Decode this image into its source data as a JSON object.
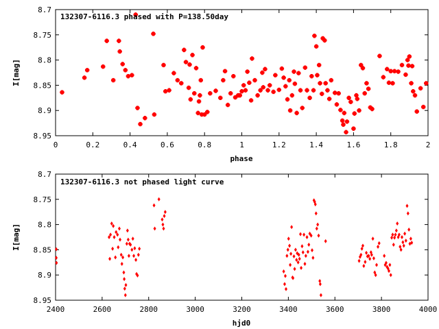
{
  "chart_data": [
    {
      "type": "scatter",
      "title": "132307-6116.3 phased with P=138.50day",
      "xlabel": "phase",
      "ylabel": "I[mag]",
      "xlim": [
        0,
        2
      ],
      "ylim": [
        8.7,
        8.95
      ],
      "y_inverted": true,
      "x_ticks": [
        "0",
        "0.2",
        "0.4",
        "0.6",
        "0.8",
        "1",
        "1.2",
        "1.4",
        "1.6",
        "1.8",
        "2"
      ],
      "y_ticks": [
        "8.7",
        "8.75",
        "8.8",
        "8.85",
        "8.9",
        "8.95"
      ],
      "grid": false,
      "marker_color": "#ff0000",
      "points": [
        [
          0.035,
          8.864
        ],
        [
          0.155,
          8.835
        ],
        [
          0.17,
          8.82
        ],
        [
          0.255,
          8.813
        ],
        [
          0.275,
          8.762
        ],
        [
          0.31,
          8.84
        ],
        [
          0.34,
          8.762
        ],
        [
          0.345,
          8.783
        ],
        [
          0.36,
          8.808
        ],
        [
          0.375,
          8.82
        ],
        [
          0.39,
          8.832
        ],
        [
          0.41,
          8.83
        ],
        [
          0.43,
          8.71
        ],
        [
          0.44,
          8.895
        ],
        [
          0.455,
          8.927
        ],
        [
          0.48,
          8.915
        ],
        [
          0.525,
          8.748
        ],
        [
          0.53,
          8.908
        ],
        [
          0.58,
          8.81
        ],
        [
          0.59,
          8.862
        ],
        [
          0.61,
          8.86
        ],
        [
          0.635,
          8.826
        ],
        [
          0.655,
          8.84
        ],
        [
          0.675,
          8.846
        ],
        [
          0.69,
          8.78
        ],
        [
          0.7,
          8.804
        ],
        [
          0.715,
          8.855
        ],
        [
          0.72,
          8.809
        ],
        [
          0.725,
          8.878
        ],
        [
          0.735,
          8.79
        ],
        [
          0.745,
          8.866
        ],
        [
          0.755,
          8.816
        ],
        [
          0.765,
          8.905
        ],
        [
          0.77,
          8.882
        ],
        [
          0.775,
          8.87
        ],
        [
          0.78,
          8.84
        ],
        [
          0.785,
          8.908
        ],
        [
          0.79,
          8.775
        ],
        [
          0.8,
          8.908
        ],
        [
          0.815,
          8.903
        ],
        [
          0.83,
          8.866
        ],
        [
          0.86,
          8.861
        ],
        [
          0.885,
          8.875
        ],
        [
          0.9,
          8.84
        ],
        [
          0.91,
          8.822
        ],
        [
          0.925,
          8.889
        ],
        [
          0.94,
          8.866
        ],
        [
          0.955,
          8.832
        ],
        [
          0.965,
          8.874
        ],
        [
          0.98,
          8.87
        ],
        [
          0.99,
          8.87
        ],
        [
          1.0,
          8.862
        ],
        [
          1.01,
          8.85
        ],
        [
          1.02,
          8.86
        ],
        [
          1.03,
          8.823
        ],
        [
          1.04,
          8.845
        ],
        [
          1.05,
          8.88
        ],
        [
          1.055,
          8.797
        ],
        [
          1.07,
          8.84
        ],
        [
          1.085,
          8.87
        ],
        [
          1.1,
          8.86
        ],
        [
          1.11,
          8.825
        ],
        [
          1.115,
          8.854
        ],
        [
          1.125,
          8.818
        ],
        [
          1.14,
          8.86
        ],
        [
          1.15,
          8.85
        ],
        [
          1.17,
          8.863
        ],
        [
          1.18,
          8.83
        ],
        [
          1.2,
          8.859
        ],
        [
          1.215,
          8.817
        ],
        [
          1.225,
          8.835
        ],
        [
          1.235,
          8.852
        ],
        [
          1.245,
          8.878
        ],
        [
          1.255,
          8.84
        ],
        [
          1.26,
          8.9
        ],
        [
          1.27,
          8.87
        ],
        [
          1.28,
          8.823
        ],
        [
          1.285,
          8.847
        ],
        [
          1.295,
          8.905
        ],
        [
          1.305,
          8.826
        ],
        [
          1.315,
          8.86
        ],
        [
          1.325,
          8.895
        ],
        [
          1.34,
          8.815
        ],
        [
          1.35,
          8.86
        ],
        [
          1.365,
          8.875
        ],
        [
          1.375,
          8.832
        ],
        [
          1.385,
          8.86
        ],
        [
          1.39,
          8.752
        ],
        [
          1.4,
          8.773
        ],
        [
          1.405,
          8.83
        ],
        [
          1.415,
          8.81
        ],
        [
          1.42,
          8.846
        ],
        [
          1.43,
          8.867
        ],
        [
          1.435,
          8.757
        ],
        [
          1.445,
          8.761
        ],
        [
          1.45,
          8.846
        ],
        [
          1.46,
          8.86
        ],
        [
          1.47,
          8.877
        ],
        [
          1.48,
          8.84
        ],
        [
          1.5,
          8.865
        ],
        [
          1.51,
          8.888
        ],
        [
          1.52,
          8.866
        ],
        [
          1.53,
          8.899
        ],
        [
          1.54,
          8.92
        ],
        [
          1.545,
          8.928
        ],
        [
          1.55,
          8.905
        ],
        [
          1.56,
          8.943
        ],
        [
          1.565,
          8.922
        ],
        [
          1.575,
          8.875
        ],
        [
          1.585,
          8.883
        ],
        [
          1.6,
          8.936
        ],
        [
          1.605,
          8.906
        ],
        [
          1.615,
          8.87
        ],
        [
          1.62,
          8.877
        ],
        [
          1.63,
          8.9
        ],
        [
          1.64,
          8.81
        ],
        [
          1.65,
          8.816
        ],
        [
          1.66,
          8.866
        ],
        [
          1.67,
          8.846
        ],
        [
          1.68,
          8.857
        ],
        [
          1.69,
          8.894
        ],
        [
          1.7,
          8.897
        ],
        [
          1.74,
          8.792
        ],
        [
          1.76,
          8.834
        ],
        [
          1.78,
          8.818
        ],
        [
          1.79,
          8.845
        ],
        [
          1.8,
          8.822
        ],
        [
          1.81,
          8.846
        ],
        [
          1.82,
          8.822
        ],
        [
          1.84,
          8.823
        ],
        [
          1.86,
          8.81
        ],
        [
          1.88,
          8.829
        ],
        [
          1.89,
          8.8
        ],
        [
          1.895,
          8.811
        ],
        [
          1.9,
          8.793
        ],
        [
          1.91,
          8.846
        ],
        [
          1.915,
          8.812
        ],
        [
          1.92,
          8.862
        ],
        [
          1.93,
          8.87
        ],
        [
          1.94,
          8.902
        ],
        [
          1.96,
          8.856
        ],
        [
          1.975,
          8.893
        ],
        [
          1.99,
          8.846
        ]
      ]
    },
    {
      "type": "scatter",
      "title": "132307-6116.3 not phased light curve",
      "xlabel": "hjd0",
      "ylabel": "I[mag]",
      "xlim": [
        2400,
        4000
      ],
      "ylim": [
        8.7,
        8.95
      ],
      "y_inverted": true,
      "x_ticks": [
        "2400",
        "2600",
        "2800",
        "3000",
        "3200",
        "3400",
        "3600",
        "3800",
        "4000"
      ],
      "y_ticks": [
        "8.7",
        "8.75",
        "8.8",
        "8.85",
        "8.9",
        "8.95"
      ],
      "grid": false,
      "marker_color": "#ff0000",
      "points": [
        [
          2403,
          8.849
        ],
        [
          2403,
          8.866
        ],
        [
          2404,
          8.876
        ],
        [
          2630,
          8.825
        ],
        [
          2633,
          8.868
        ],
        [
          2636,
          8.82
        ],
        [
          2641,
          8.798
        ],
        [
          2645,
          8.848
        ],
        [
          2648,
          8.803
        ],
        [
          2652,
          8.825
        ],
        [
          2657,
          8.865
        ],
        [
          2660,
          8.815
        ],
        [
          2666,
          8.82
        ],
        [
          2669,
          8.845
        ],
        [
          2674,
          8.808
        ],
        [
          2677,
          8.83
        ],
        [
          2682,
          8.86
        ],
        [
          2685,
          8.878
        ],
        [
          2689,
          8.865
        ],
        [
          2693,
          8.895
        ],
        [
          2695,
          8.908
        ],
        [
          2697,
          8.927
        ],
        [
          2700,
          8.94
        ],
        [
          2702,
          8.92
        ],
        [
          2706,
          8.838
        ],
        [
          2709,
          8.812
        ],
        [
          2712,
          8.83
        ],
        [
          2715,
          8.862
        ],
        [
          2718,
          8.838
        ],
        [
          2722,
          8.84
        ],
        [
          2728,
          8.85
        ],
        [
          2732,
          8.828
        ],
        [
          2736,
          8.862
        ],
        [
          2740,
          8.847
        ],
        [
          2745,
          8.87
        ],
        [
          2748,
          8.898
        ],
        [
          2752,
          8.901
        ],
        [
          2756,
          8.86
        ],
        [
          2760,
          8.848
        ],
        [
          2823,
          8.762
        ],
        [
          2826,
          8.808
        ],
        [
          2844,
          8.75
        ],
        [
          2858,
          8.79
        ],
        [
          2861,
          8.8
        ],
        [
          2864,
          8.808
        ],
        [
          2867,
          8.783
        ],
        [
          2871,
          8.775
        ],
        [
          3380,
          8.893
        ],
        [
          3384,
          8.918
        ],
        [
          3387,
          8.902
        ],
        [
          3390,
          8.928
        ],
        [
          3394,
          8.862
        ],
        [
          3398,
          8.85
        ],
        [
          3401,
          8.828
        ],
        [
          3405,
          8.842
        ],
        [
          3408,
          8.88
        ],
        [
          3411,
          8.858
        ],
        [
          3414,
          8.805
        ],
        [
          3418,
          8.905
        ],
        [
          3420,
          8.906
        ],
        [
          3424,
          8.863
        ],
        [
          3427,
          8.888
        ],
        [
          3431,
          8.85
        ],
        [
          3435,
          8.87
        ],
        [
          3438,
          8.857
        ],
        [
          3442,
          8.875
        ],
        [
          3445,
          8.86
        ],
        [
          3448,
          8.868
        ],
        [
          3452,
          8.819
        ],
        [
          3455,
          8.886
        ],
        [
          3459,
          8.843
        ],
        [
          3463,
          8.855
        ],
        [
          3467,
          8.82
        ],
        [
          3471,
          8.878
        ],
        [
          3475,
          8.862
        ],
        [
          3480,
          8.825
        ],
        [
          3484,
          8.854
        ],
        [
          3488,
          8.84
        ],
        [
          3492,
          8.818
        ],
        [
          3498,
          8.822
        ],
        [
          3502,
          8.851
        ],
        [
          3506,
          8.866
        ],
        [
          3510,
          8.752
        ],
        [
          3513,
          8.755
        ],
        [
          3516,
          8.76
        ],
        [
          3519,
          8.778
        ],
        [
          3522,
          8.808
        ],
        [
          3526,
          8.8
        ],
        [
          3530,
          8.822
        ],
        [
          3535,
          8.912
        ],
        [
          3537,
          8.918
        ],
        [
          3540,
          8.94
        ],
        [
          3560,
          8.833
        ],
        [
          3704,
          8.872
        ],
        [
          3708,
          8.864
        ],
        [
          3712,
          8.86
        ],
        [
          3716,
          8.848
        ],
        [
          3720,
          8.842
        ],
        [
          3724,
          8.882
        ],
        [
          3730,
          8.874
        ],
        [
          3735,
          8.856
        ],
        [
          3740,
          8.863
        ],
        [
          3745,
          8.862
        ],
        [
          3750,
          8.868
        ],
        [
          3755,
          8.855
        ],
        [
          3758,
          8.86
        ],
        [
          3763,
          8.828
        ],
        [
          3767,
          8.867
        ],
        [
          3771,
          8.895
        ],
        [
          3775,
          8.9
        ],
        [
          3779,
          8.88
        ],
        [
          3785,
          8.844
        ],
        [
          3790,
          8.837
        ],
        [
          3812,
          8.862
        ],
        [
          3816,
          8.88
        ],
        [
          3820,
          8.876
        ],
        [
          3824,
          8.884
        ],
        [
          3828,
          8.887
        ],
        [
          3832,
          8.892
        ],
        [
          3836,
          8.88
        ],
        [
          3840,
          8.9
        ],
        [
          3844,
          8.826
        ],
        [
          3848,
          8.82
        ],
        [
          3852,
          8.84
        ],
        [
          3856,
          8.826
        ],
        [
          3860,
          8.82
        ],
        [
          3864,
          8.812
        ],
        [
          3868,
          8.798
        ],
        [
          3872,
          8.825
        ],
        [
          3876,
          8.82
        ],
        [
          3880,
          8.844
        ],
        [
          3884,
          8.85
        ],
        [
          3888,
          8.825
        ],
        [
          3892,
          8.835
        ],
        [
          3896,
          8.842
        ],
        [
          3900,
          8.818
        ],
        [
          3905,
          8.832
        ],
        [
          3910,
          8.763
        ],
        [
          3914,
          8.778
        ],
        [
          3918,
          8.81
        ],
        [
          3922,
          8.838
        ],
        [
          3926,
          8.828
        ],
        [
          3930,
          8.836
        ]
      ]
    }
  ]
}
